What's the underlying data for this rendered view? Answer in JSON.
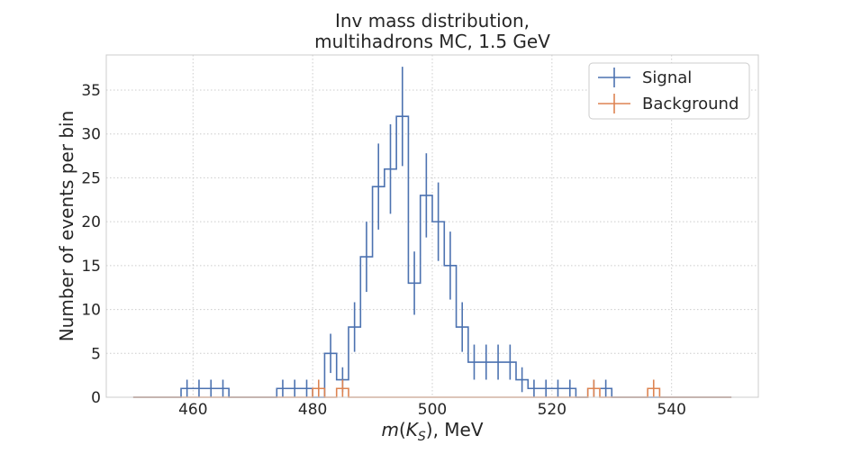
{
  "chart_data": {
    "type": "histogram",
    "title": [
      "Inv mass distribution,",
      "multihadrons MC, 1.5 GeV"
    ],
    "xlabel": "m(K_S), MeV",
    "ylabel": "Number of events per bin",
    "xlim": [
      450,
      550
    ],
    "ylim": [
      0,
      39
    ],
    "x_ticks": [
      460,
      480,
      500,
      520,
      540
    ],
    "y_ticks": [
      0,
      5,
      10,
      15,
      20,
      25,
      30,
      35
    ],
    "grid": true,
    "legend_position": "top-right",
    "bin_edges": [
      450,
      452,
      454,
      456,
      458,
      460,
      462,
      464,
      466,
      468,
      470,
      472,
      474,
      476,
      478,
      480,
      482,
      484,
      486,
      488,
      490,
      492,
      494,
      496,
      498,
      500,
      502,
      504,
      506,
      508,
      510,
      512,
      514,
      516,
      518,
      520,
      522,
      524,
      526,
      528,
      530,
      532,
      534,
      536,
      538,
      540,
      542,
      544,
      546,
      548,
      550
    ],
    "series": [
      {
        "name": "Signal",
        "color": "#4c72b0",
        "counts": [
          0,
          0,
          0,
          0,
          1,
          1,
          1,
          1,
          0,
          0,
          0,
          0,
          1,
          1,
          1,
          0,
          5,
          2,
          8,
          16,
          24,
          26,
          32,
          13,
          23,
          20,
          15,
          8,
          4,
          4,
          4,
          4,
          2,
          1,
          1,
          1,
          1,
          0,
          1,
          1,
          0,
          0,
          0,
          0,
          0,
          0,
          0,
          0,
          0,
          0
        ]
      },
      {
        "name": "Background",
        "color": "#dd8452",
        "counts": [
          0,
          0,
          0,
          0,
          0,
          0,
          0,
          0,
          0,
          0,
          0,
          0,
          0,
          0,
          0,
          1,
          0,
          1,
          0,
          0,
          0,
          0,
          0,
          0,
          0,
          0,
          0,
          0,
          0,
          0,
          0,
          0,
          0,
          0,
          0,
          0,
          0,
          0,
          1,
          0,
          0,
          0,
          0,
          1,
          0,
          0,
          0,
          0,
          0,
          0
        ]
      }
    ]
  }
}
